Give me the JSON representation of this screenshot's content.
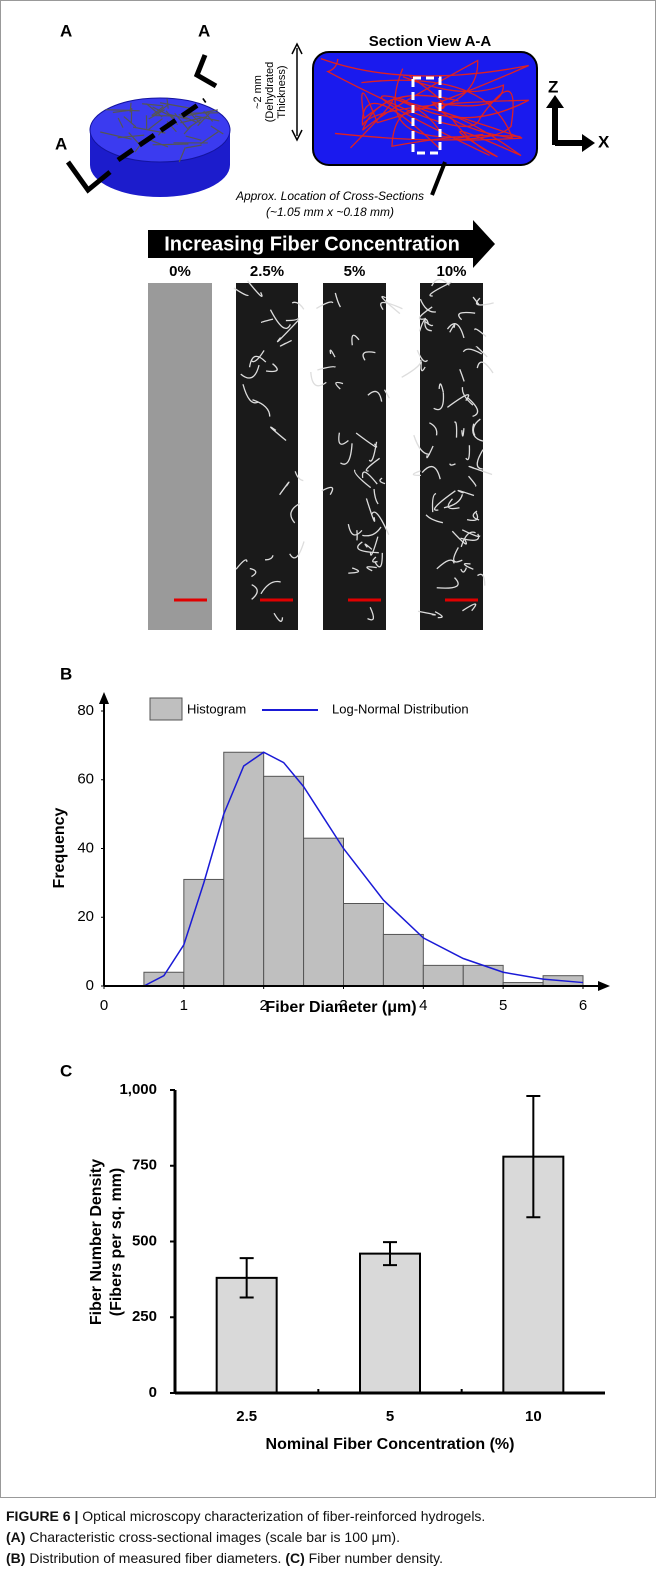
{
  "panel_labels": [
    "A",
    "B",
    "C"
  ],
  "panel_a": {
    "section_letters": [
      "A",
      "A"
    ],
    "section_title": "Section View A-A",
    "thickness_label": [
      "~2 mm",
      "(Dehydrated",
      "Thickness)"
    ],
    "axes": [
      "Z",
      "X"
    ],
    "cross_section_note": [
      "Approx. Location of Cross-Sections",
      "(~1.05 mm x ~0.18 mm)"
    ],
    "arrow_label": "Increasing Fiber Concentration",
    "concentrations": [
      "0%",
      "2.5%",
      "5%",
      "10%"
    ]
  },
  "chart_data": [
    {
      "type": "histogram",
      "x_label": "Fiber Diameter (μm)",
      "y_label": "Frequency",
      "bins": [
        0.5,
        1,
        1.5,
        2,
        2.5,
        3,
        3.5,
        4,
        4.5,
        5,
        5.5,
        6
      ],
      "series": [
        {
          "name": "Histogram",
          "color": "#bfbfbf",
          "values": [
            4,
            31,
            68,
            61,
            43,
            24,
            15,
            6,
            6,
            1,
            3
          ]
        }
      ],
      "lines": [
        {
          "name": "Log-Normal Distribution",
          "color": "#1a1ad6",
          "x": [
            0.5,
            0.75,
            1,
            1.25,
            1.5,
            1.75,
            2,
            2.25,
            2.5,
            2.75,
            3,
            3.5,
            4,
            4.5,
            5,
            5.5,
            6
          ],
          "values": [
            0,
            3,
            12,
            30,
            50,
            64,
            68,
            65,
            58,
            49,
            40,
            25,
            14,
            8,
            4,
            2,
            1
          ]
        }
      ],
      "xlim": [
        0,
        6
      ],
      "xticks": [
        0,
        1,
        2,
        3,
        4,
        5,
        6
      ],
      "ylim": [
        0,
        80
      ],
      "yticks": [
        0,
        20,
        40,
        60,
        80
      ]
    },
    {
      "type": "bar",
      "x_label": "Nominal Fiber Concentration (%)",
      "y_label": [
        "Fiber Number Density",
        "(Fibers per sq. mm)"
      ],
      "categories": [
        "2.5",
        "5",
        "10"
      ],
      "series": [
        {
          "color": "#d9d9d9",
          "values": [
            380,
            460,
            780
          ],
          "errors": [
            65,
            38,
            200
          ]
        }
      ],
      "ylim": [
        0,
        1000
      ],
      "yticks": [
        0,
        250,
        500,
        750,
        {
          "value": 1000,
          "label": "1,000"
        }
      ]
    }
  ],
  "caption": {
    "label": "FIGURE 6 |",
    "text": " Optical microscopy characterization of fiber-reinforced hydrogels.",
    "items": [
      {
        "tag": "(A)",
        "text": " Characteristic cross-sectional images (scale bar is 100 μm)."
      },
      {
        "tag": "(B)",
        "text": " Distribution of measured fiber diameters. "
      },
      {
        "tag": "(C)",
        "text": " Fiber number density."
      }
    ]
  }
}
